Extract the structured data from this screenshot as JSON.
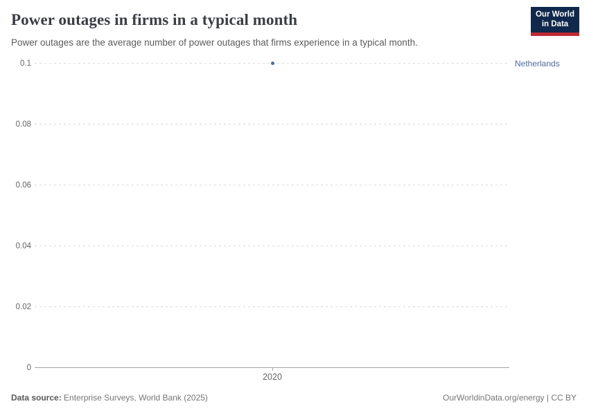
{
  "header": {
    "title": "Power outages in firms in a typical month",
    "subtitle": "Power outages are the average number of power outages that firms experience in a typical month.",
    "logo": {
      "line1": "Our World",
      "line2": "in Data",
      "bg_color": "#10284b",
      "accent_color": "#be2832"
    }
  },
  "chart_data": {
    "type": "scatter",
    "title": "Power outages in firms in a typical month",
    "xlabel": "",
    "ylabel": "",
    "ylim": [
      0,
      0.1
    ],
    "grid": true,
    "legend_position": "right-of-plot",
    "x_ticks": [
      {
        "value": 2020,
        "label": "2020"
      }
    ],
    "y_ticks": [
      {
        "value": 0,
        "label": "0"
      },
      {
        "value": 0.02,
        "label": "0.02"
      },
      {
        "value": 0.04,
        "label": "0.04"
      },
      {
        "value": 0.06,
        "label": "0.06"
      },
      {
        "value": 0.08,
        "label": "0.08"
      },
      {
        "value": 0.1,
        "label": "0.1"
      }
    ],
    "series": [
      {
        "name": "Netherlands",
        "color": "#4c6a9c",
        "points": [
          {
            "x": 2020,
            "y": 0.1
          }
        ]
      }
    ]
  },
  "footer": {
    "source_label": "Data source:",
    "source_text": "Enterprise Surveys, World Bank (2025)",
    "credit": "OurWorldinData.org/energy | CC BY"
  }
}
